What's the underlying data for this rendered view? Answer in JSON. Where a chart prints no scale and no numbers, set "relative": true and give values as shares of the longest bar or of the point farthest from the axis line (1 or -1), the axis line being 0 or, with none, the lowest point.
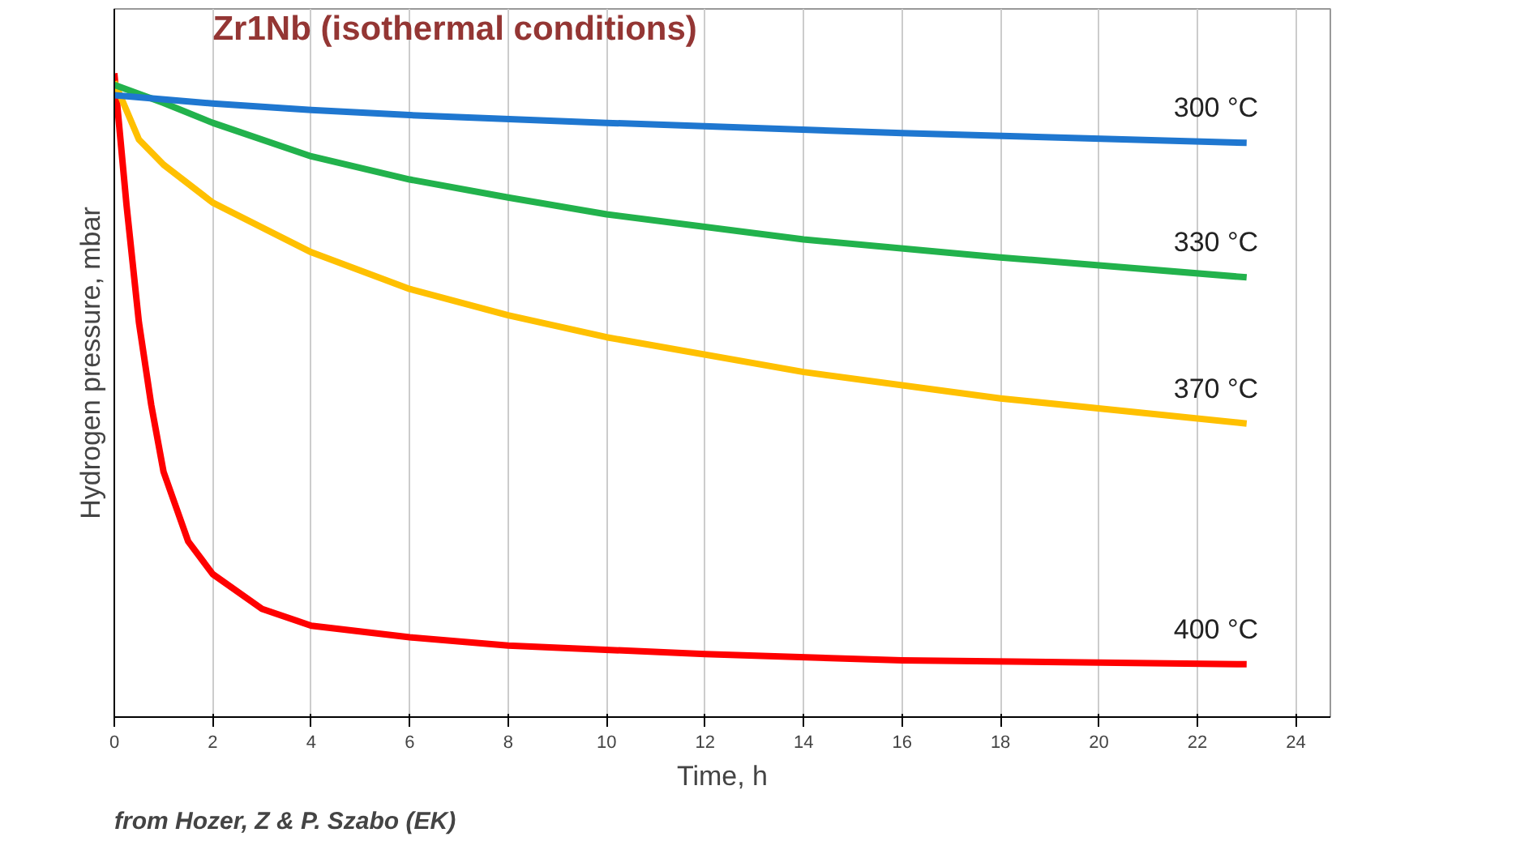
{
  "chart_data": {
    "type": "line",
    "title": "Zr1Nb (isothermal conditions)",
    "xlabel": "Time, h",
    "ylabel": "Hydrogen pressure, mbar",
    "relative": true,
    "xlim": [
      0,
      24.7
    ],
    "xticks": [
      0,
      2,
      4,
      6,
      8,
      10,
      12,
      14,
      16,
      18,
      20,
      22,
      24
    ],
    "grid": "x",
    "marker": "none",
    "line_style": "solid",
    "annotations": [
      "from Hozer, Z & P. Szabo (EK)"
    ],
    "series": [
      {
        "name": "300 °C",
        "color": "#1f77d0",
        "x": [
          0,
          2,
          4,
          6,
          10,
          16,
          23
        ],
        "values": [
          0.966,
          0.953,
          0.943,
          0.935,
          0.923,
          0.907,
          0.892
        ]
      },
      {
        "name": "330 °C",
        "color": "#22b24c",
        "x": [
          0,
          1,
          2,
          4,
          6,
          8,
          10,
          14,
          18,
          23
        ],
        "values": [
          0.982,
          0.954,
          0.923,
          0.871,
          0.835,
          0.807,
          0.781,
          0.742,
          0.714,
          0.683
        ]
      },
      {
        "name": "370 °C",
        "color": "#ffc000",
        "x": [
          0,
          0.5,
          1,
          2,
          4,
          6,
          8,
          10,
          14,
          18,
          23
        ],
        "values": [
          0.987,
          0.897,
          0.858,
          0.799,
          0.722,
          0.665,
          0.624,
          0.59,
          0.536,
          0.495,
          0.456
        ]
      },
      {
        "name": "400 °C",
        "color": "#ff0000",
        "x": [
          0,
          0.25,
          0.5,
          0.75,
          1,
          1.5,
          2,
          3,
          4,
          6,
          8,
          12,
          16,
          23
        ],
        "values": [
          1.0,
          0.794,
          0.613,
          0.485,
          0.381,
          0.273,
          0.222,
          0.168,
          0.142,
          0.124,
          0.111,
          0.098,
          0.088,
          0.082
        ]
      }
    ]
  }
}
